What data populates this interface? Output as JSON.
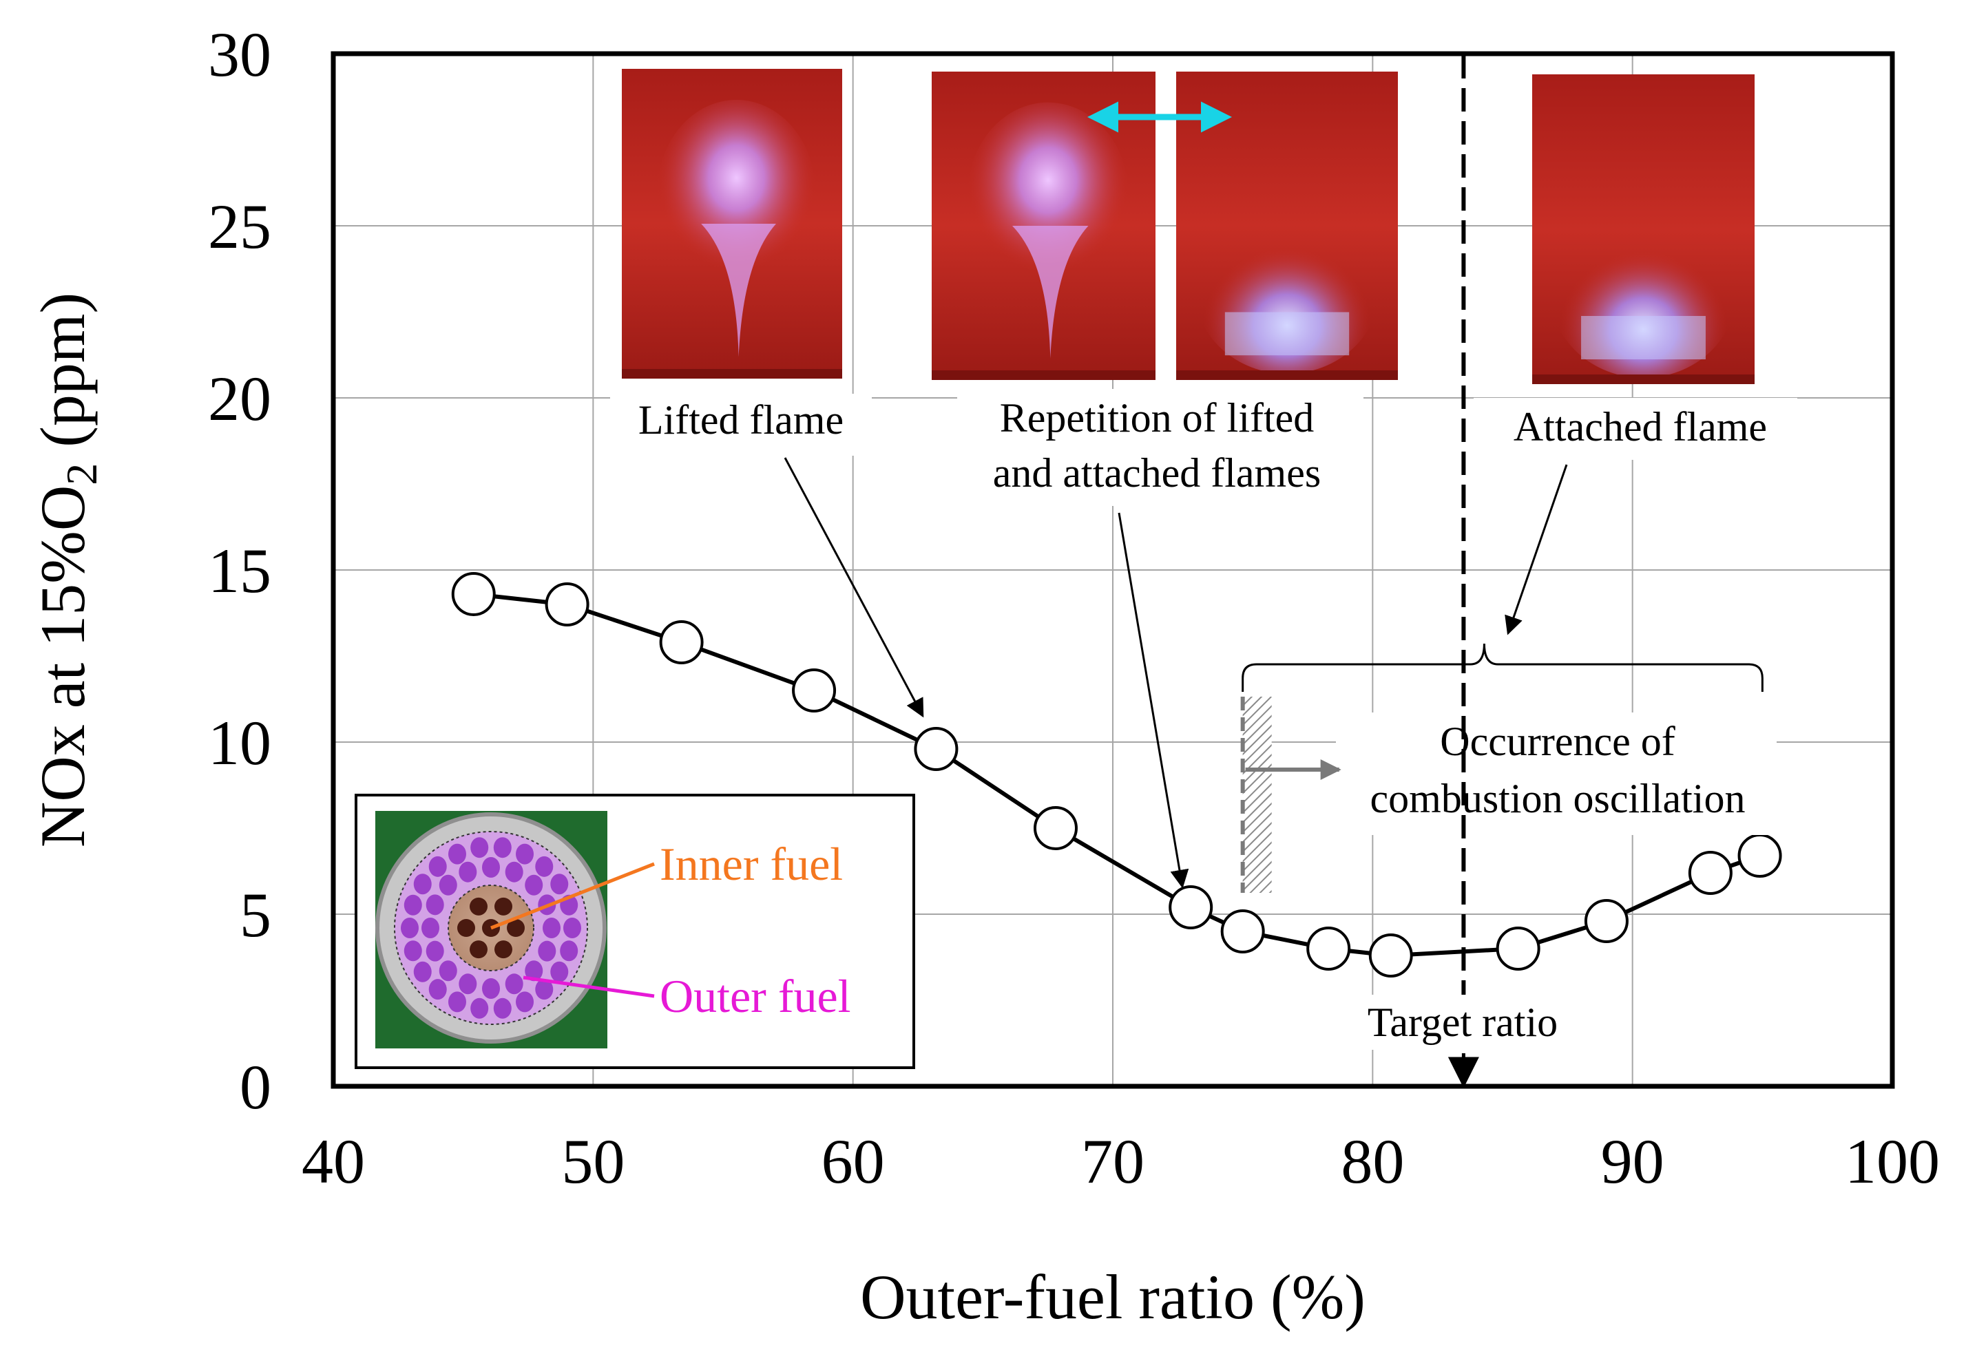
{
  "chart_data": {
    "type": "line",
    "title": "",
    "xlabel": "Outer-fuel ratio (%)",
    "ylabel": "NOx at 15%O2 (ppm)",
    "xlim": [
      40,
      100
    ],
    "ylim": [
      0,
      30
    ],
    "xticks": [
      40,
      50,
      60,
      70,
      80,
      90,
      100
    ],
    "yticks": [
      0,
      5,
      10,
      15,
      20,
      25,
      30
    ],
    "grid": true,
    "series": [
      {
        "name": "NOx",
        "marker": "open-circle",
        "x": [
          45.4,
          49.0,
          53.4,
          58.5,
          63.2,
          67.8,
          73.0,
          75.0,
          78.3,
          80.7,
          85.6,
          89.0,
          93.0,
          94.9
        ],
        "y": [
          14.3,
          14.0,
          12.9,
          11.5,
          9.8,
          7.5,
          5.2,
          4.5,
          4.0,
          3.8,
          4.0,
          4.8,
          6.2,
          6.7
        ]
      }
    ],
    "target_ratio": 83.5,
    "oscillation_onset": 75.0,
    "oscillation_range": [
      75.0,
      95.0
    ],
    "annotations": {
      "lifted": "Lifted flame",
      "repetition_line1": "Repetition of lifted",
      "repetition_line2": "and attached flames",
      "attached": "Attached flame",
      "oscillation_line1": "Occurrence of",
      "oscillation_line2": "combustion oscillation",
      "target": "Target ratio"
    },
    "inset": {
      "inner_label": "Inner fuel",
      "outer_label": "Outer fuel",
      "inner_color": "#f4771f",
      "outer_color": "#e619d6"
    },
    "colors": {
      "flame_bg": "#b8231c",
      "flame_core": "#d9a0f5",
      "double_arrow": "#19d3e6",
      "hatch": "#7a7a7a",
      "inset_bg": "#1f6b2d"
    }
  }
}
